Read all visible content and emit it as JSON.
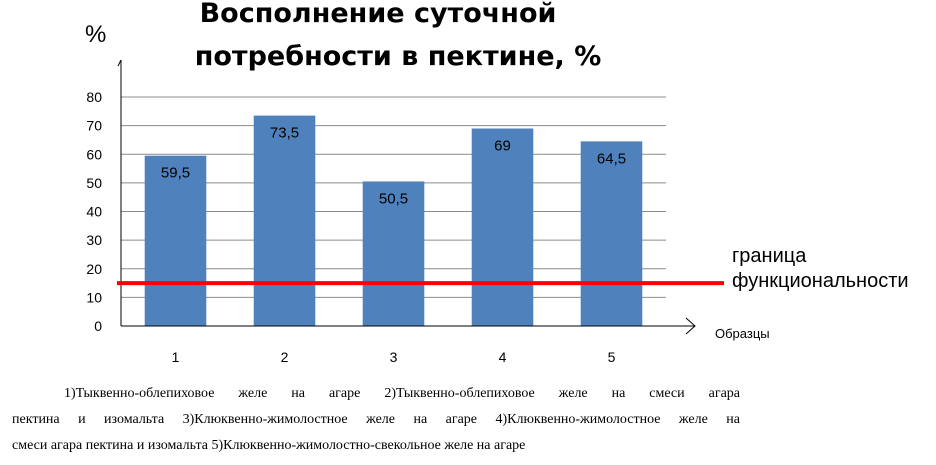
{
  "chart_data": {
    "type": "bar",
    "title": [
      "Восполнение суточной",
      "потребности в пектине, %"
    ],
    "ylabel": "%",
    "xlabel": "Образцы",
    "categories": [
      "1",
      "2",
      "3",
      "4",
      "5"
    ],
    "values": [
      59.5,
      73.5,
      50.5,
      69,
      64.5
    ],
    "data_labels": [
      "59,5",
      "73,5",
      "50,5",
      "69",
      "64,5"
    ],
    "ylim": [
      0,
      80
    ],
    "yticks": [
      0,
      10,
      20,
      30,
      40,
      50,
      60,
      70,
      80
    ],
    "grid": true,
    "bar_color": "#4f81bd",
    "threshold": {
      "value": 15,
      "color": "#ff0000",
      "label": [
        "граница",
        "функциональности"
      ]
    }
  },
  "caption": {
    "lines": [
      "1)Тыквенно-облепиховое желе на агаре 2)Тыквенно-облепиховое желе на смеси агара",
      "пектина и изомальта 3)Клюквенно-жимолостное желе на агаре 4)Клюквенно-жимолостное желе на",
      "смеси агара пектина и изомальта 5)Клюквенно-жимолостно-свекольное желе на агаре"
    ]
  }
}
